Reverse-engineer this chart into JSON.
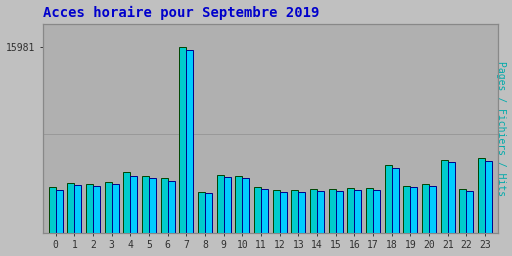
{
  "title": "Acces horaire pour Septembre 2019",
  "ylabel": "Pages / Fichiers / Hits",
  "xlabel_values": [
    0,
    1,
    2,
    3,
    4,
    5,
    6,
    7,
    8,
    9,
    10,
    11,
    12,
    13,
    14,
    15,
    16,
    17,
    18,
    19,
    20,
    21,
    22,
    23
  ],
  "bar_values_pages": [
    3900,
    4300,
    4200,
    4400,
    5200,
    4900,
    4700,
    15981,
    3500,
    4950,
    4850,
    3950,
    3650,
    3650,
    3750,
    3750,
    3850,
    3850,
    5800,
    4050,
    4200,
    6300,
    3750,
    6400
  ],
  "bar_values_hits": [
    3700,
    4100,
    4050,
    4200,
    4900,
    4700,
    4500,
    15700,
    3400,
    4800,
    4700,
    3800,
    3500,
    3500,
    3600,
    3600,
    3700,
    3700,
    5600,
    3900,
    4000,
    6100,
    3600,
    6200
  ],
  "bar_color_pages": "#00CCCC",
  "bar_color_hits": "#00CCFF",
  "bar_edge_pages": "#004400",
  "bar_edge_hits": "#000088",
  "background_color": "#C0C0C0",
  "plot_bg_color": "#B0B0B0",
  "title_color": "#0000CC",
  "title_fontsize": 10,
  "ylabel_color": "#00AAAA",
  "ylabel_fontsize": 7,
  "tick_label_color": "#303030",
  "ytick_label": "15981",
  "ymax": 15981,
  "ylim": [
    0,
    18000
  ],
  "figsize": [
    5.12,
    2.56
  ],
  "dpi": 100
}
